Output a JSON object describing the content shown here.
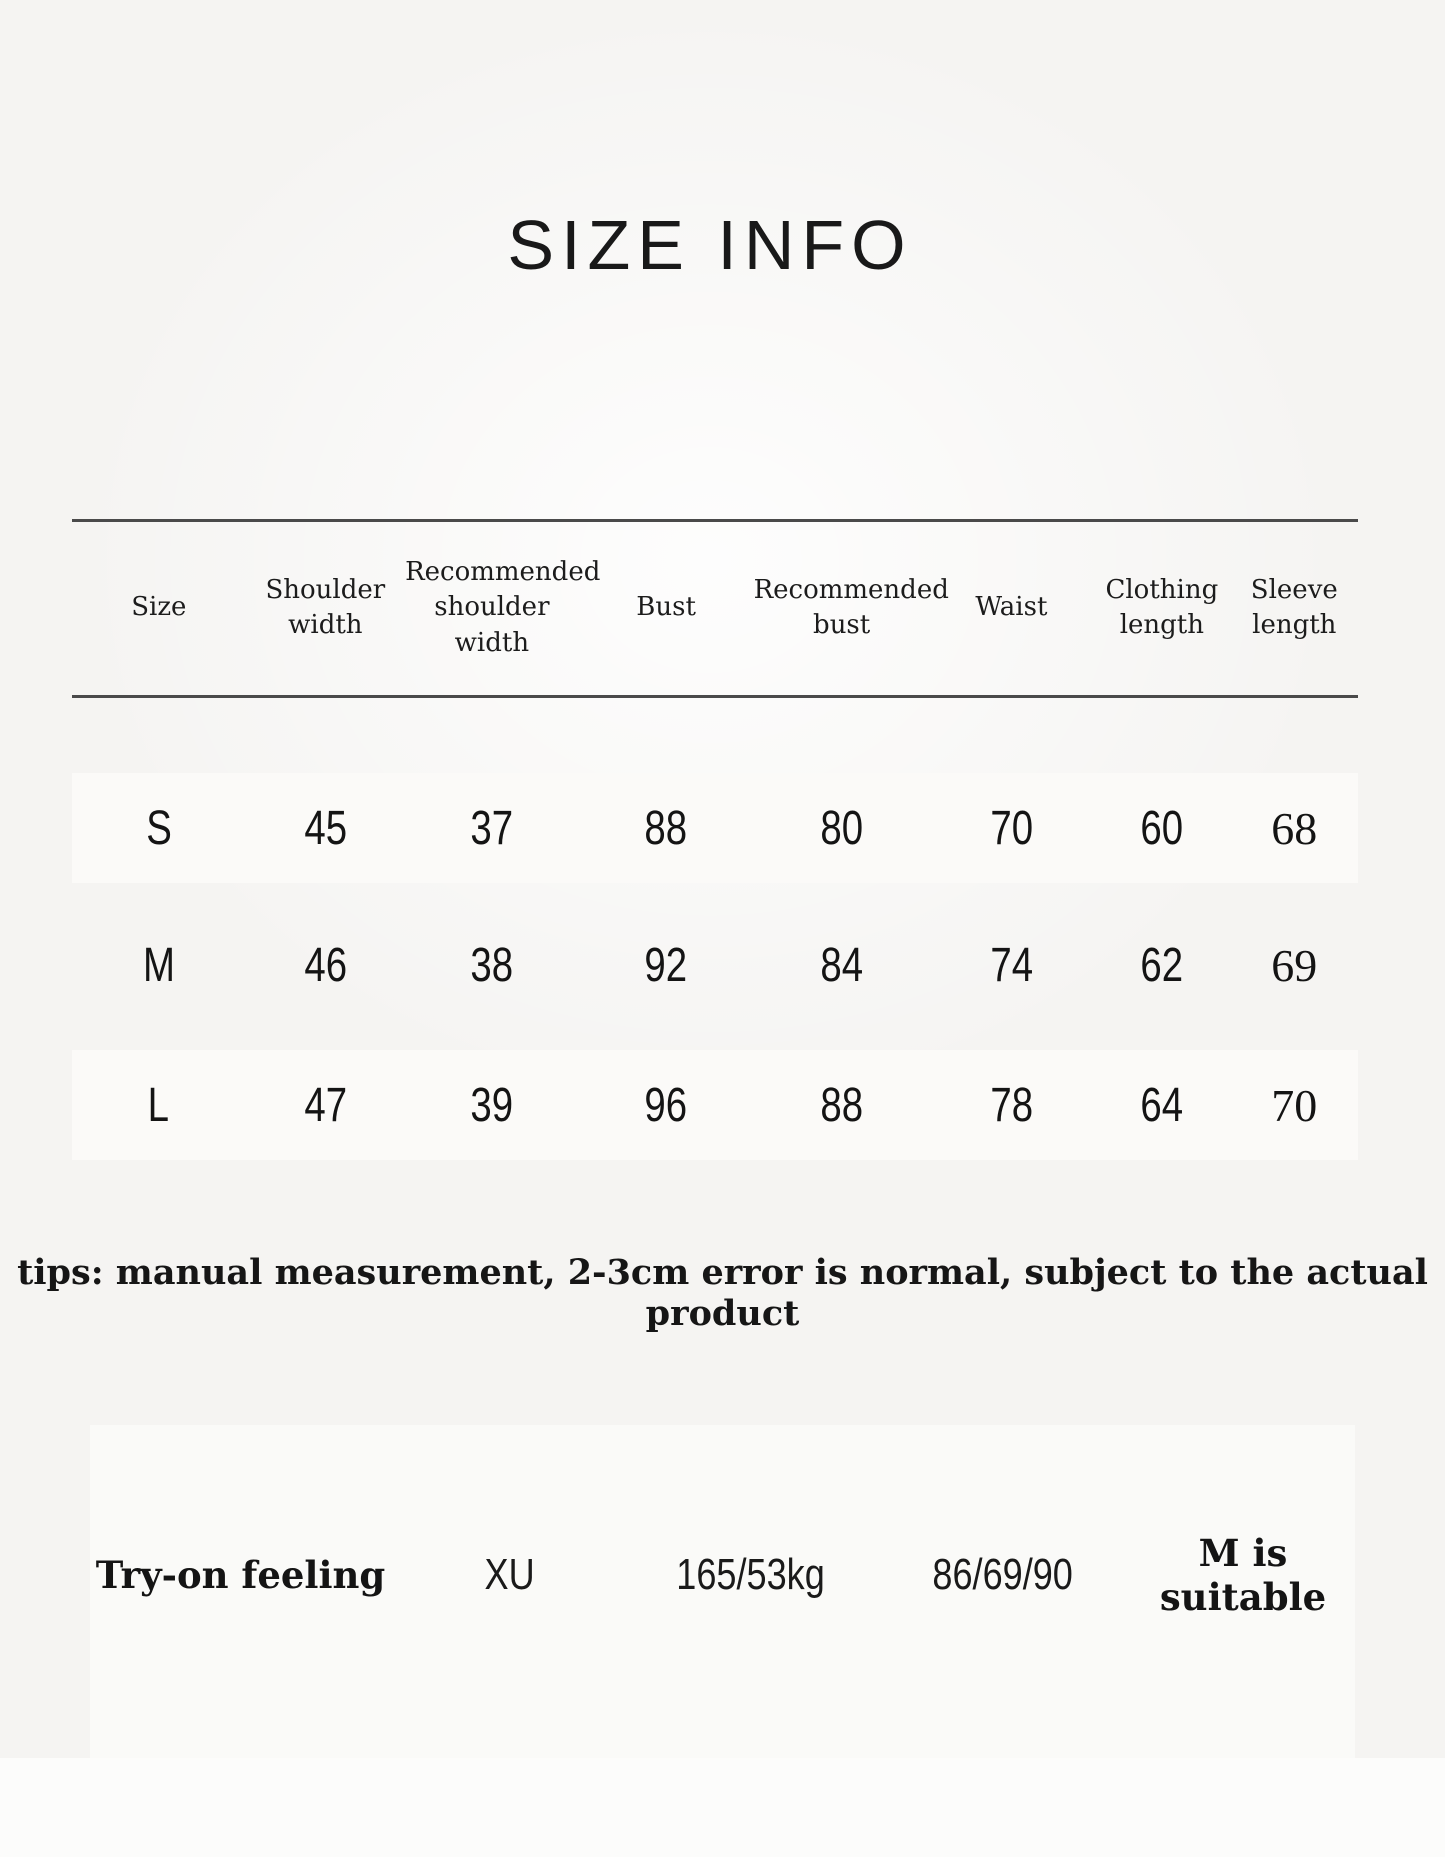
{
  "page": {
    "title": "SIZE INFO"
  },
  "table": {
    "columns": [
      {
        "line1": "Size"
      },
      {
        "line1": "Shoulder width"
      },
      {
        "line1": "Recommended",
        "line2": "shoulder width"
      },
      {
        "line1": "Bust"
      },
      {
        "line1": "Recommended bust"
      },
      {
        "line1": "Waist"
      },
      {
        "line1": "Clothing",
        "line2": "length"
      },
      {
        "line1": "Sleeve",
        "line2": "length"
      }
    ],
    "rows": [
      {
        "size": "S",
        "shoulder_width": "45",
        "recommended_shoulder_width": "37",
        "bust": "88",
        "recommended_bust": "80",
        "waist": "70",
        "clothing_length": "60",
        "sleeve_length": "68"
      },
      {
        "size": "M",
        "shoulder_width": "46",
        "recommended_shoulder_width": "38",
        "bust": "92",
        "recommended_bust": "84",
        "waist": "74",
        "clothing_length": "62",
        "sleeve_length": "69"
      },
      {
        "size": "L",
        "shoulder_width": "47",
        "recommended_shoulder_width": "39",
        "bust": "96",
        "recommended_bust": "88",
        "waist": "78",
        "clothing_length": "64",
        "sleeve_length": "70"
      }
    ]
  },
  "tips": "tips: manual measurement, 2-3cm error is normal, subject to the actual product",
  "try_on": {
    "label": "Try-on feeling",
    "model": "XU",
    "height_weight": "165/53kg",
    "measurements": "86/69/90",
    "verdict": "M is suitable"
  }
}
